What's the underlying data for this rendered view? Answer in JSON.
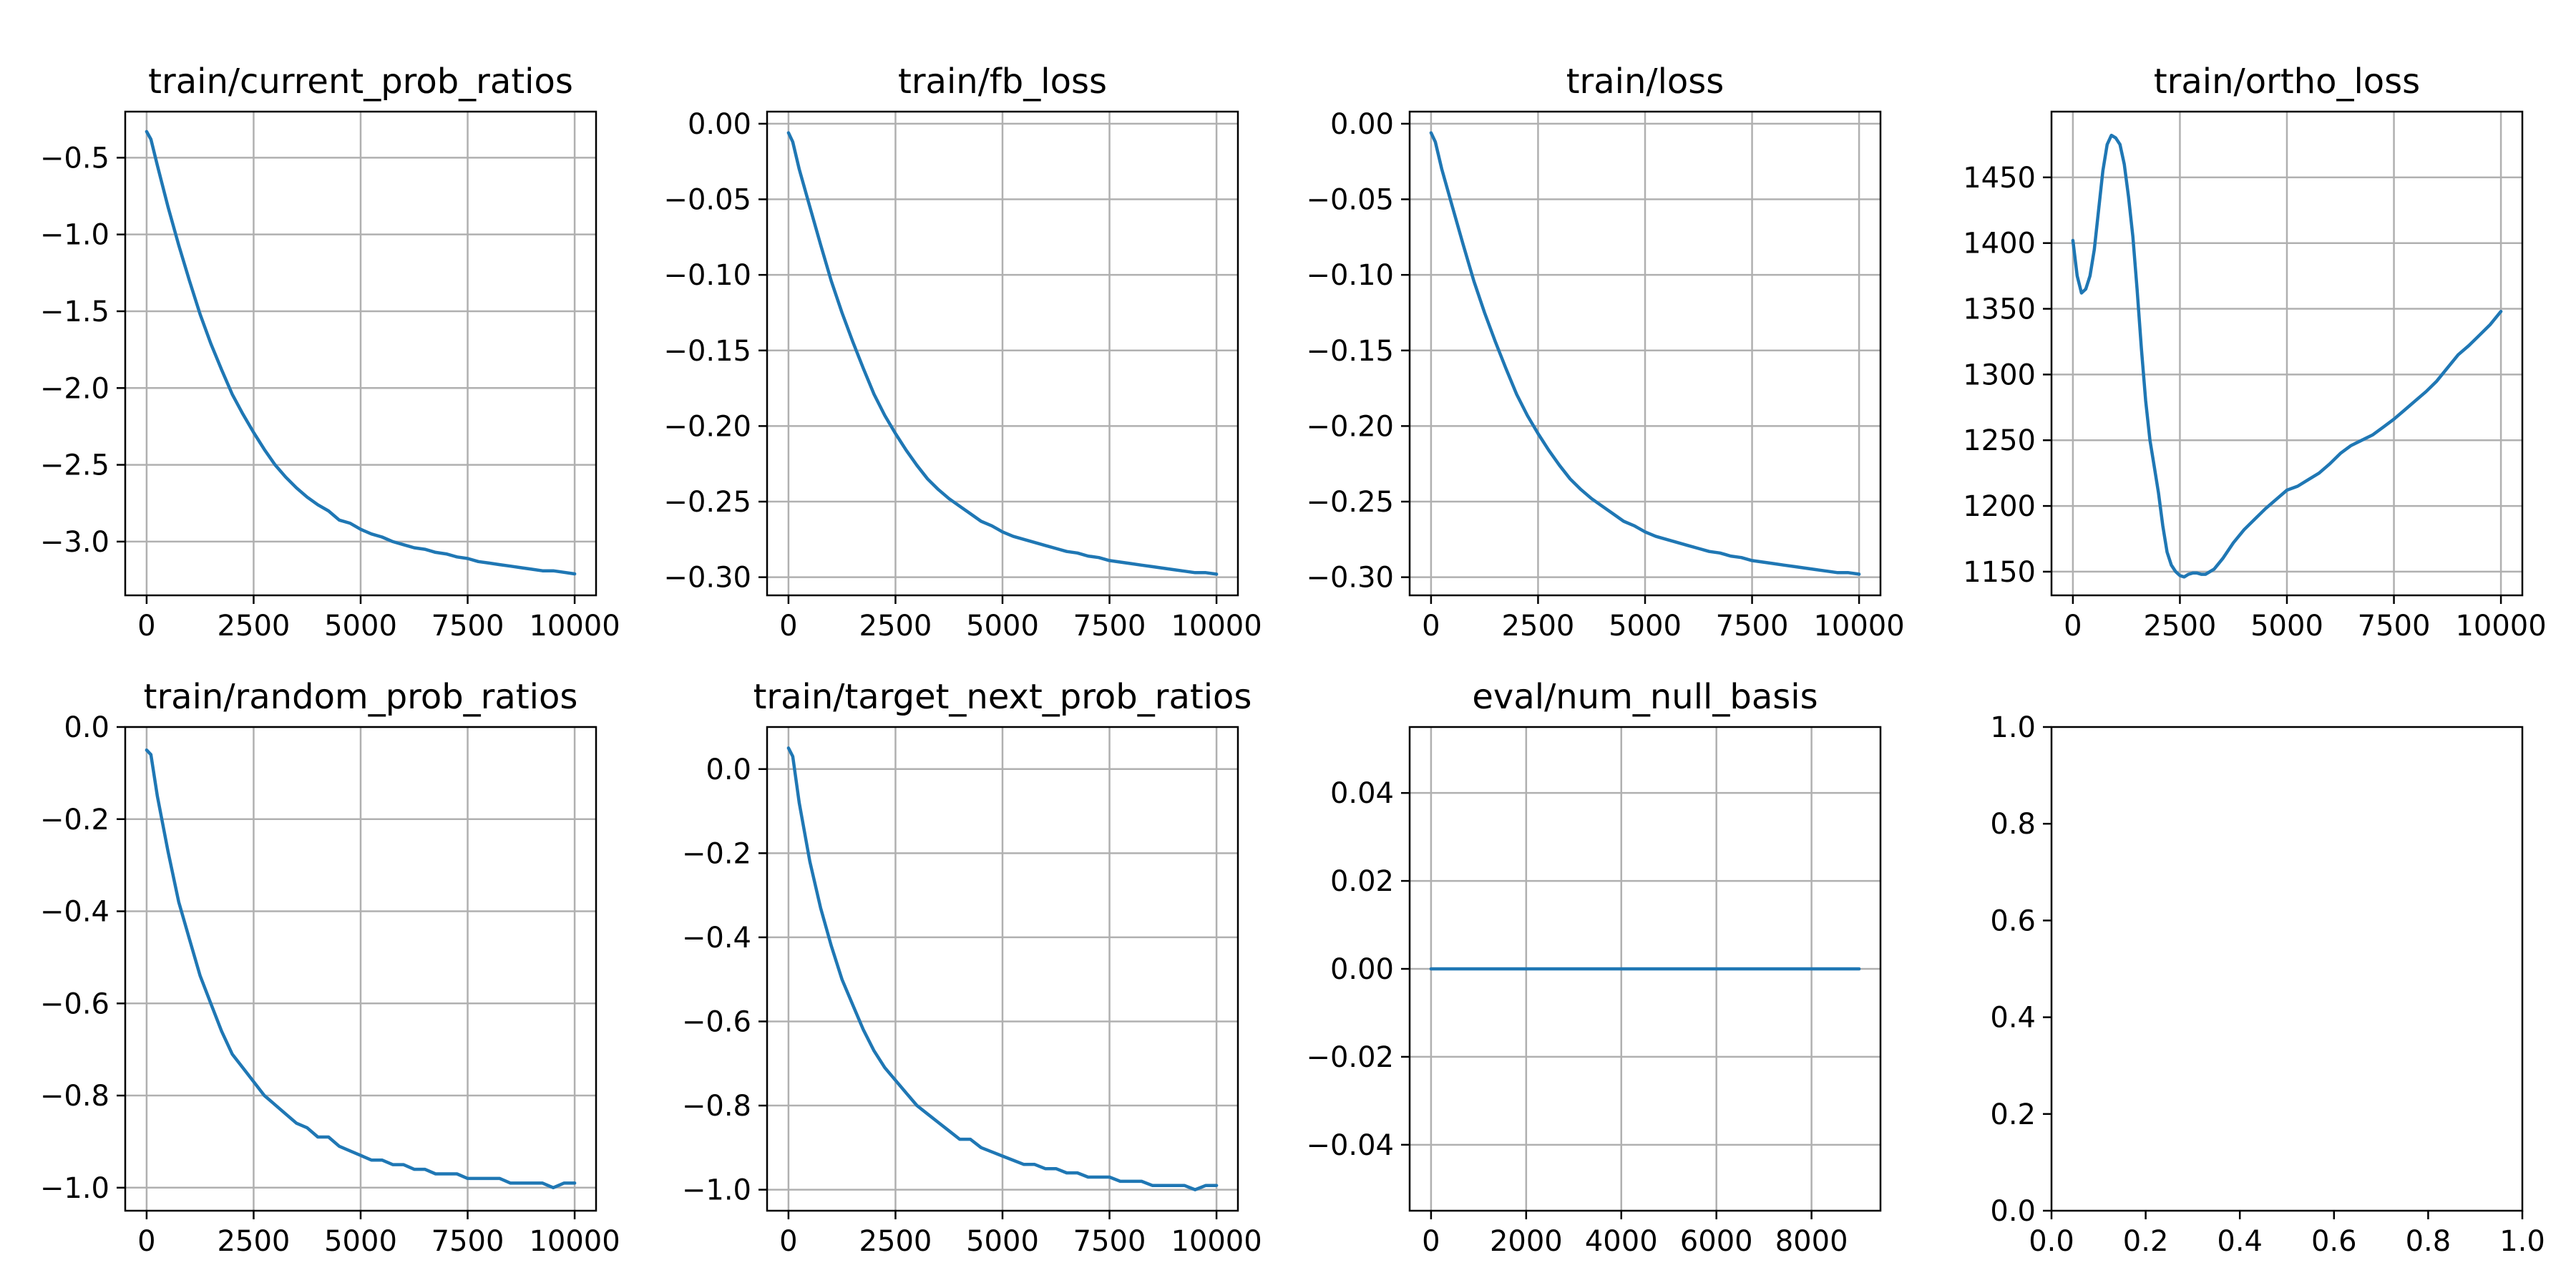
{
  "figure": {
    "background": "#ffffff",
    "line_color": "#1f77b4"
  },
  "chart_data": [
    {
      "type": "line",
      "title": "train/current_prob_ratios",
      "xlabel": "",
      "ylabel": "",
      "grid": true,
      "xlim": [
        -500,
        10500
      ],
      "ylim": [
        -3.35,
        -0.2
      ],
      "xticks": [
        0,
        2500,
        5000,
        7500,
        10000
      ],
      "xtick_labels": [
        "0",
        "2500",
        "5000",
        "7500",
        "10000"
      ],
      "yticks": [
        -3.0,
        -2.5,
        -2.0,
        -1.5,
        -1.0,
        -0.5
      ],
      "ytick_labels": [
        "−3.0",
        "−2.5",
        "−2.0",
        "−1.5",
        "−1.0",
        "−0.5"
      ],
      "series": [
        {
          "x": [
            0,
            100,
            250,
            500,
            750,
            1000,
            1250,
            1500,
            1750,
            2000,
            2250,
            2500,
            2750,
            3000,
            3250,
            3500,
            3750,
            4000,
            4250,
            4500,
            4750,
            5000,
            5250,
            5500,
            5750,
            6000,
            6250,
            6500,
            6750,
            7000,
            7250,
            7500,
            7750,
            8000,
            8250,
            8500,
            8750,
            9000,
            9250,
            9500,
            9750,
            10000
          ],
          "y": [
            -0.33,
            -0.38,
            -0.55,
            -0.82,
            -1.07,
            -1.3,
            -1.52,
            -1.71,
            -1.88,
            -2.04,
            -2.17,
            -2.29,
            -2.4,
            -2.5,
            -2.58,
            -2.65,
            -2.71,
            -2.76,
            -2.8,
            -2.86,
            -2.88,
            -2.92,
            -2.95,
            -2.97,
            -3.0,
            -3.02,
            -3.04,
            -3.05,
            -3.07,
            -3.08,
            -3.1,
            -3.11,
            -3.13,
            -3.14,
            -3.15,
            -3.16,
            -3.17,
            -3.18,
            -3.19,
            -3.19,
            -3.2,
            -3.21
          ]
        }
      ]
    },
    {
      "type": "line",
      "title": "train/fb_loss",
      "xlabel": "",
      "ylabel": "",
      "grid": true,
      "xlim": [
        -500,
        10500
      ],
      "ylim": [
        -0.312,
        0.008
      ],
      "xticks": [
        0,
        2500,
        5000,
        7500,
        10000
      ],
      "xtick_labels": [
        "0",
        "2500",
        "5000",
        "7500",
        "10000"
      ],
      "yticks": [
        -0.3,
        -0.25,
        -0.2,
        -0.15,
        -0.1,
        -0.05,
        0.0
      ],
      "ytick_labels": [
        "−0.30",
        "−0.25",
        "−0.20",
        "−0.15",
        "−0.10",
        "−0.05",
        "0.00"
      ],
      "series": [
        {
          "x": [
            0,
            100,
            250,
            500,
            750,
            1000,
            1250,
            1500,
            1750,
            2000,
            2250,
            2500,
            2750,
            3000,
            3250,
            3500,
            3750,
            4000,
            4250,
            4500,
            4750,
            5000,
            5250,
            5500,
            5750,
            6000,
            6250,
            6500,
            6750,
            7000,
            7250,
            7500,
            7750,
            8000,
            8250,
            8500,
            8750,
            9000,
            9250,
            9500,
            9750,
            10000
          ],
          "y": [
            -0.006,
            -0.012,
            -0.03,
            -0.055,
            -0.08,
            -0.104,
            -0.125,
            -0.144,
            -0.162,
            -0.179,
            -0.193,
            -0.205,
            -0.216,
            -0.226,
            -0.235,
            -0.242,
            -0.248,
            -0.253,
            -0.258,
            -0.263,
            -0.266,
            -0.27,
            -0.273,
            -0.275,
            -0.277,
            -0.279,
            -0.281,
            -0.283,
            -0.284,
            -0.286,
            -0.287,
            -0.289,
            -0.29,
            -0.291,
            -0.292,
            -0.293,
            -0.294,
            -0.295,
            -0.296,
            -0.297,
            -0.297,
            -0.298
          ]
        }
      ]
    },
    {
      "type": "line",
      "title": "train/loss",
      "xlabel": "",
      "ylabel": "",
      "grid": true,
      "xlim": [
        -500,
        10500
      ],
      "ylim": [
        -0.312,
        0.008
      ],
      "xticks": [
        0,
        2500,
        5000,
        7500,
        10000
      ],
      "xtick_labels": [
        "0",
        "2500",
        "5000",
        "7500",
        "10000"
      ],
      "yticks": [
        -0.3,
        -0.25,
        -0.2,
        -0.15,
        -0.1,
        -0.05,
        0.0
      ],
      "ytick_labels": [
        "−0.30",
        "−0.25",
        "−0.20",
        "−0.15",
        "−0.10",
        "−0.05",
        "0.00"
      ],
      "series": [
        {
          "x": [
            0,
            100,
            250,
            500,
            750,
            1000,
            1250,
            1500,
            1750,
            2000,
            2250,
            2500,
            2750,
            3000,
            3250,
            3500,
            3750,
            4000,
            4250,
            4500,
            4750,
            5000,
            5250,
            5500,
            5750,
            6000,
            6250,
            6500,
            6750,
            7000,
            7250,
            7500,
            7750,
            8000,
            8250,
            8500,
            8750,
            9000,
            9250,
            9500,
            9750,
            10000
          ],
          "y": [
            -0.006,
            -0.012,
            -0.03,
            -0.055,
            -0.08,
            -0.104,
            -0.125,
            -0.144,
            -0.162,
            -0.179,
            -0.193,
            -0.205,
            -0.216,
            -0.226,
            -0.235,
            -0.242,
            -0.248,
            -0.253,
            -0.258,
            -0.263,
            -0.266,
            -0.27,
            -0.273,
            -0.275,
            -0.277,
            -0.279,
            -0.281,
            -0.283,
            -0.284,
            -0.286,
            -0.287,
            -0.289,
            -0.29,
            -0.291,
            -0.292,
            -0.293,
            -0.294,
            -0.295,
            -0.296,
            -0.297,
            -0.297,
            -0.298
          ]
        }
      ]
    },
    {
      "type": "line",
      "title": "train/ortho_loss",
      "xlabel": "",
      "ylabel": "",
      "grid": true,
      "xlim": [
        -500,
        10500
      ],
      "ylim": [
        1132,
        1500
      ],
      "xticks": [
        0,
        2500,
        5000,
        7500,
        10000
      ],
      "xtick_labels": [
        "0",
        "2500",
        "5000",
        "7500",
        "10000"
      ],
      "yticks": [
        1150,
        1200,
        1250,
        1300,
        1350,
        1400,
        1450
      ],
      "ytick_labels": [
        "1150",
        "1200",
        "1250",
        "1300",
        "1350",
        "1400",
        "1450"
      ],
      "series": [
        {
          "x": [
            0,
            100,
            200,
            300,
            400,
            500,
            600,
            700,
            800,
            900,
            1000,
            1100,
            1200,
            1300,
            1400,
            1500,
            1600,
            1700,
            1800,
            1900,
            2000,
            2100,
            2200,
            2300,
            2400,
            2500,
            2600,
            2700,
            2800,
            2900,
            3000,
            3100,
            3200,
            3300,
            3500,
            3750,
            4000,
            4250,
            4500,
            4750,
            5000,
            5250,
            5500,
            5750,
            6000,
            6250,
            6500,
            6750,
            7000,
            7250,
            7500,
            7750,
            8000,
            8250,
            8500,
            8750,
            9000,
            9250,
            9500,
            9750,
            10000
          ],
          "y": [
            1402,
            1375,
            1362,
            1365,
            1375,
            1395,
            1425,
            1455,
            1475,
            1482,
            1480,
            1475,
            1460,
            1435,
            1405,
            1365,
            1320,
            1280,
            1250,
            1230,
            1210,
            1185,
            1165,
            1155,
            1150,
            1147,
            1146,
            1148,
            1149,
            1149,
            1148,
            1148,
            1150,
            1152,
            1160,
            1172,
            1182,
            1190,
            1198,
            1205,
            1212,
            1215,
            1220,
            1225,
            1232,
            1240,
            1246,
            1250,
            1254,
            1260,
            1266,
            1273,
            1280,
            1287,
            1295,
            1305,
            1315,
            1322,
            1330,
            1338,
            1348
          ]
        }
      ]
    },
    {
      "type": "line",
      "title": "train/random_prob_ratios",
      "xlabel": "",
      "ylabel": "",
      "grid": true,
      "xlim": [
        -500,
        10500
      ],
      "ylim": [
        -1.05,
        0.0
      ],
      "xticks": [
        0,
        2500,
        5000,
        7500,
        10000
      ],
      "xtick_labels": [
        "0",
        "2500",
        "5000",
        "7500",
        "10000"
      ],
      "yticks": [
        -1.0,
        -0.8,
        -0.6,
        -0.4,
        -0.2,
        0.0
      ],
      "ytick_labels": [
        "−1.0",
        "−0.8",
        "−0.6",
        "−0.4",
        "−0.2",
        "0.0"
      ],
      "series": [
        {
          "x": [
            0,
            100,
            250,
            500,
            750,
            1000,
            1250,
            1500,
            1750,
            2000,
            2250,
            2500,
            2750,
            3000,
            3250,
            3500,
            3750,
            4000,
            4250,
            4500,
            4750,
            5000,
            5250,
            5500,
            5750,
            6000,
            6250,
            6500,
            6750,
            7000,
            7250,
            7500,
            7750,
            8000,
            8250,
            8500,
            8750,
            9000,
            9250,
            9500,
            9750,
            10000
          ],
          "y": [
            -0.05,
            -0.06,
            -0.15,
            -0.27,
            -0.38,
            -0.46,
            -0.54,
            -0.6,
            -0.66,
            -0.71,
            -0.74,
            -0.77,
            -0.8,
            -0.82,
            -0.84,
            -0.86,
            -0.87,
            -0.89,
            -0.89,
            -0.91,
            -0.92,
            -0.93,
            -0.94,
            -0.94,
            -0.95,
            -0.95,
            -0.96,
            -0.96,
            -0.97,
            -0.97,
            -0.97,
            -0.98,
            -0.98,
            -0.98,
            -0.98,
            -0.99,
            -0.99,
            -0.99,
            -0.99,
            -1.0,
            -0.99,
            -0.99
          ]
        }
      ]
    },
    {
      "type": "line",
      "title": "train/target_next_prob_ratios",
      "xlabel": "",
      "ylabel": "",
      "grid": true,
      "xlim": [
        -500,
        10500
      ],
      "ylim": [
        -1.05,
        0.1
      ],
      "xticks": [
        0,
        2500,
        5000,
        7500,
        10000
      ],
      "xtick_labels": [
        "0",
        "2500",
        "5000",
        "7500",
        "10000"
      ],
      "yticks": [
        -1.0,
        -0.8,
        -0.6,
        -0.4,
        -0.2,
        0.0
      ],
      "ytick_labels": [
        "−1.0",
        "−0.8",
        "−0.6",
        "−0.4",
        "−0.2",
        "0.0"
      ],
      "series": [
        {
          "x": [
            0,
            100,
            250,
            500,
            750,
            1000,
            1250,
            1500,
            1750,
            2000,
            2250,
            2500,
            2750,
            3000,
            3250,
            3500,
            3750,
            4000,
            4250,
            4500,
            4750,
            5000,
            5250,
            5500,
            5750,
            6000,
            6250,
            6500,
            6750,
            7000,
            7250,
            7500,
            7750,
            8000,
            8250,
            8500,
            8750,
            9000,
            9250,
            9500,
            9750,
            10000
          ],
          "y": [
            0.05,
            0.03,
            -0.08,
            -0.22,
            -0.33,
            -0.42,
            -0.5,
            -0.56,
            -0.62,
            -0.67,
            -0.71,
            -0.74,
            -0.77,
            -0.8,
            -0.82,
            -0.84,
            -0.86,
            -0.88,
            -0.88,
            -0.9,
            -0.91,
            -0.92,
            -0.93,
            -0.94,
            -0.94,
            -0.95,
            -0.95,
            -0.96,
            -0.96,
            -0.97,
            -0.97,
            -0.97,
            -0.98,
            -0.98,
            -0.98,
            -0.99,
            -0.99,
            -0.99,
            -0.99,
            -1.0,
            -0.99,
            -0.99
          ]
        }
      ]
    },
    {
      "type": "line",
      "title": "eval/num_null_basis",
      "xlabel": "",
      "ylabel": "",
      "grid": true,
      "xlim": [
        -450,
        9450
      ],
      "ylim": [
        -0.055,
        0.055
      ],
      "xticks": [
        0,
        2000,
        4000,
        6000,
        8000
      ],
      "xtick_labels": [
        "0",
        "2000",
        "4000",
        "6000",
        "8000"
      ],
      "yticks": [
        -0.04,
        -0.02,
        0.0,
        0.02,
        0.04
      ],
      "ytick_labels": [
        "−0.04",
        "−0.02",
        "0.00",
        "0.02",
        "0.04"
      ],
      "series": [
        {
          "x": [
            0,
            9000
          ],
          "y": [
            0,
            0
          ]
        }
      ]
    },
    {
      "type": "line",
      "title": "",
      "xlabel": "",
      "ylabel": "",
      "grid": false,
      "xlim": [
        0,
        1
      ],
      "ylim": [
        0,
        1
      ],
      "xticks": [
        0,
        0.2,
        0.4,
        0.6,
        0.8,
        1.0
      ],
      "xtick_labels": [
        "0.0",
        "0.2",
        "0.4",
        "0.6",
        "0.8",
        "1.0"
      ],
      "yticks": [
        0,
        0.2,
        0.4,
        0.6,
        0.8,
        1.0
      ],
      "ytick_labels": [
        "0.0",
        "0.2",
        "0.4",
        "0.6",
        "0.8",
        "1.0"
      ],
      "series": []
    }
  ]
}
